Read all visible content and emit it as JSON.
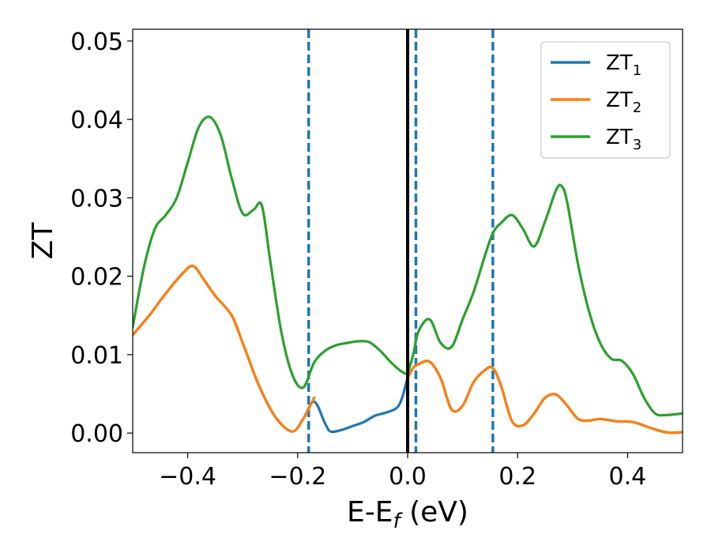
{
  "chart_data": {
    "type": "line",
    "xlabel": "E-E",
    "xlabel_sub": "f",
    "xlabel_unit": " (eV)",
    "ylabel": "ZT",
    "xlim": [
      -0.5,
      0.5
    ],
    "ylim": [
      -0.0025,
      0.0515
    ],
    "xticks": [
      -0.4,
      -0.2,
      0.0,
      0.2,
      0.4
    ],
    "xtick_labels": [
      "−0.4",
      "−0.2",
      "0.0",
      "0.2",
      "0.4"
    ],
    "yticks": [
      0.0,
      0.01,
      0.02,
      0.03,
      0.04,
      0.05
    ],
    "ytick_labels": [
      "0.00",
      "0.01",
      "0.02",
      "0.03",
      "0.04",
      "0.05"
    ],
    "grid": false,
    "legend_position": "top-right",
    "vertical_lines": [
      {
        "x": -0.18,
        "style": "dashed",
        "color": "#1f77b4"
      },
      {
        "x": 0.0,
        "style": "solid",
        "color": "#000000"
      },
      {
        "x": 0.015,
        "style": "dashed",
        "color": "#1f77b4"
      },
      {
        "x": 0.155,
        "style": "dashed",
        "color": "#1f77b4"
      }
    ],
    "series": [
      {
        "name": "ZT",
        "name_sub": "1",
        "color": "#1f77b4",
        "x": [
          -0.5,
          -0.47,
          -0.44,
          -0.41,
          -0.39,
          -0.37,
          -0.35,
          -0.32,
          -0.3,
          -0.27,
          -0.24,
          -0.21,
          -0.19,
          -0.17,
          -0.15,
          -0.14,
          -0.12,
          -0.1,
          -0.08,
          -0.06,
          -0.04,
          -0.02,
          -0.01,
          0.0,
          0.01,
          0.02,
          0.04,
          0.06,
          0.08,
          0.1,
          0.12,
          0.14,
          0.155,
          0.17,
          0.19,
          0.21,
          0.23,
          0.25,
          0.27,
          0.29,
          0.31,
          0.33,
          0.35,
          0.38,
          0.41,
          0.44,
          0.47,
          0.5
        ],
        "y": [
          0.0125,
          0.015,
          0.0178,
          0.0203,
          0.0213,
          0.0195,
          0.0175,
          0.015,
          0.0115,
          0.006,
          0.002,
          0.0002,
          0.0018,
          0.004,
          0.0012,
          0.0002,
          0.0004,
          0.0009,
          0.0014,
          0.0022,
          0.0026,
          0.0032,
          0.0045,
          0.007,
          0.0083,
          0.0088,
          0.0091,
          0.007,
          0.003,
          0.0035,
          0.0065,
          0.008,
          0.0083,
          0.006,
          0.0015,
          0.001,
          0.0025,
          0.0045,
          0.0049,
          0.0035,
          0.0018,
          0.0016,
          0.0018,
          0.0015,
          0.0014,
          0.0007,
          0.0001,
          0.0001
        ]
      },
      {
        "name": "ZT",
        "name_sub": "2",
        "color": "#ff7f0e",
        "x": [
          -0.5,
          -0.47,
          -0.44,
          -0.41,
          -0.39,
          -0.37,
          -0.35,
          -0.32,
          -0.3,
          -0.27,
          -0.24,
          -0.21,
          -0.19,
          -0.17,
          -0.15,
          -0.14,
          -0.12,
          -0.1,
          -0.08,
          -0.06,
          -0.04,
          -0.02,
          -0.01,
          0.0,
          0.01,
          0.02,
          0.04,
          0.06,
          0.08,
          0.1,
          0.12,
          0.14,
          0.155,
          0.17,
          0.19,
          0.21,
          0.23,
          0.25,
          0.27,
          0.29,
          0.31,
          0.33,
          0.35,
          0.38,
          0.41,
          0.44,
          0.47,
          0.5
        ],
        "y": [
          0.0125,
          0.015,
          0.0178,
          0.0203,
          0.0213,
          0.0195,
          0.0175,
          0.015,
          0.0115,
          0.006,
          0.002,
          0.0002,
          0.0018,
          0.0045,
          null,
          null,
          null,
          null,
          null,
          null,
          null,
          null,
          null,
          0.007,
          0.0083,
          0.0088,
          0.0091,
          0.007,
          0.003,
          0.0035,
          0.0065,
          0.008,
          0.0083,
          0.006,
          0.0015,
          0.001,
          0.0025,
          0.0045,
          0.0049,
          0.0035,
          0.0018,
          0.0016,
          0.0018,
          0.0015,
          0.0014,
          0.0007,
          0.0001,
          0.0001
        ]
      },
      {
        "name": "ZT",
        "name_sub": "3",
        "color": "#2ca02c",
        "x": [
          -0.5,
          -0.48,
          -0.46,
          -0.44,
          -0.42,
          -0.4,
          -0.38,
          -0.36,
          -0.34,
          -0.32,
          -0.3,
          -0.28,
          -0.265,
          -0.25,
          -0.23,
          -0.21,
          -0.19,
          -0.17,
          -0.15,
          -0.13,
          -0.11,
          -0.09,
          -0.07,
          -0.05,
          -0.03,
          -0.01,
          0.0,
          0.01,
          0.02,
          0.04,
          0.06,
          0.08,
          0.1,
          0.12,
          0.14,
          0.155,
          0.17,
          0.19,
          0.21,
          0.23,
          0.25,
          0.27,
          0.28,
          0.29,
          0.31,
          0.33,
          0.35,
          0.37,
          0.39,
          0.41,
          0.43,
          0.45,
          0.47,
          0.5
        ],
        "y": [
          0.0135,
          0.021,
          0.026,
          0.0278,
          0.03,
          0.0345,
          0.039,
          0.0403,
          0.038,
          0.0325,
          0.028,
          0.0285,
          0.029,
          0.022,
          0.013,
          0.0075,
          0.0058,
          0.009,
          0.0105,
          0.0112,
          0.0115,
          0.0117,
          0.0116,
          0.0105,
          0.009,
          0.0078,
          0.0078,
          0.01,
          0.013,
          0.0145,
          0.0115,
          0.011,
          0.0145,
          0.018,
          0.0225,
          0.0255,
          0.0268,
          0.0278,
          0.026,
          0.0238,
          0.027,
          0.031,
          0.0315,
          0.0295,
          0.0215,
          0.0155,
          0.0115,
          0.0095,
          0.0092,
          0.0075,
          0.0045,
          0.0025,
          0.0023,
          0.0025
        ]
      }
    ]
  }
}
